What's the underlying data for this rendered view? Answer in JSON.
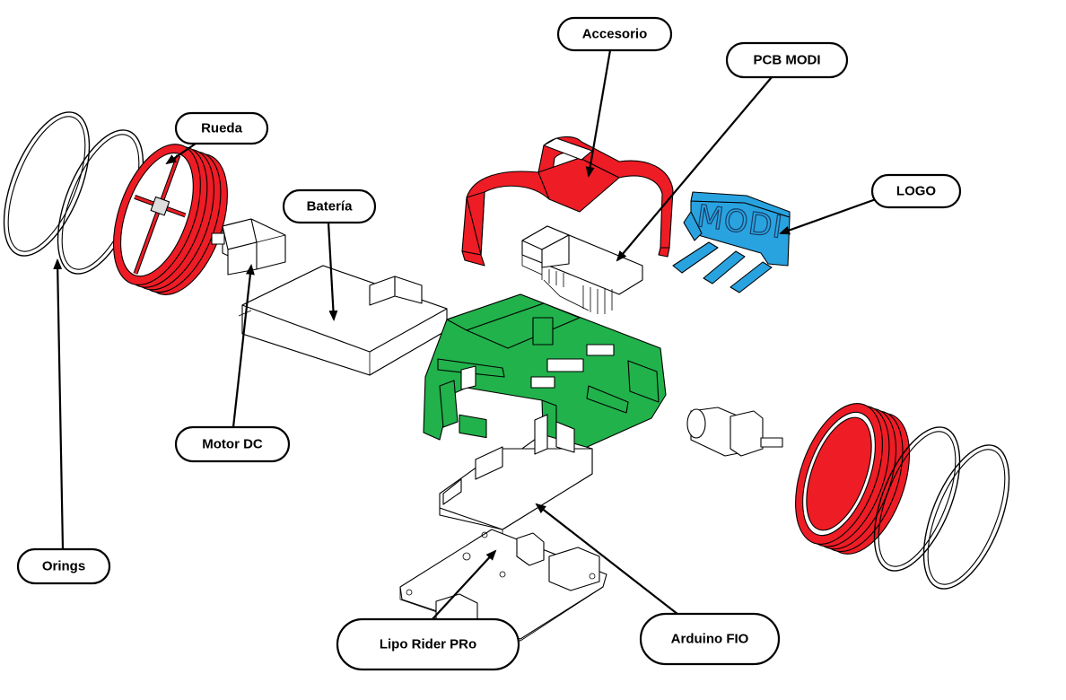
{
  "labels": {
    "accesorio": "Accesorio",
    "pcb_modi": "PCB MODI",
    "rueda": "Rueda",
    "bateria": "Batería",
    "logo": "LOGO",
    "motor_dc": "Motor DC",
    "orings": "Orings",
    "lipo_rider": "Lipo Rider PRo",
    "arduino_fio": "Arduino FIO"
  },
  "logo_lettering": "MODI",
  "colors": {
    "wheel": "#ee1c25",
    "accessory": "#ee1c25",
    "chassis": "#21b24b",
    "logo": "#29a3e0"
  }
}
